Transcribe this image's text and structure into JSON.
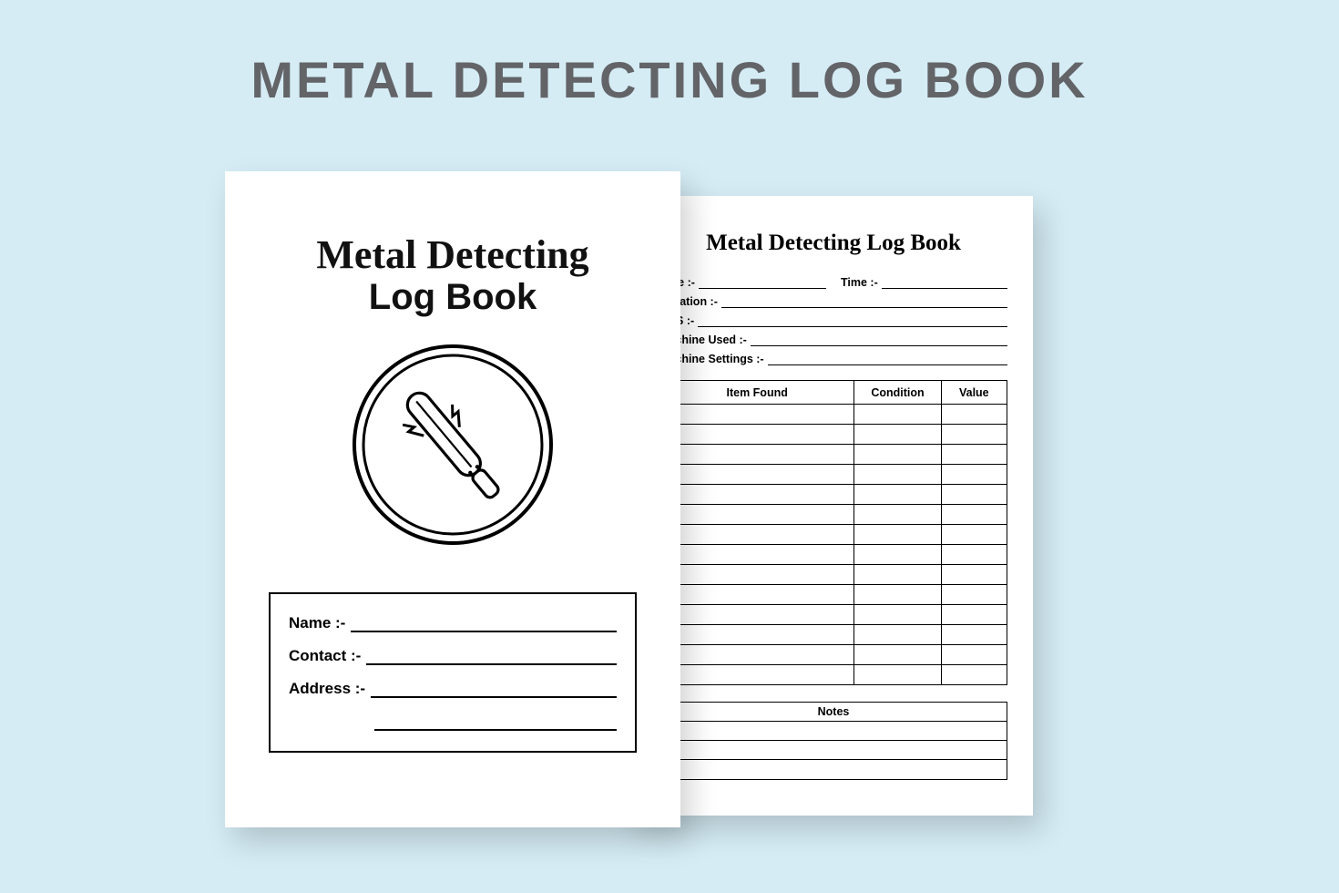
{
  "main_title": "METAL DETECTING LOG BOOK",
  "colors": {
    "background": "#d5ecf5",
    "page_bg": "#ffffff",
    "title_text": "#636468",
    "ink": "#000000"
  },
  "cover": {
    "script_title": "Metal Detecting",
    "block_title": "Log Book",
    "icon_name": "metal-detector-icon",
    "info_fields": {
      "name": "Name :-",
      "contact": "Contact :-",
      "address": "Address :-"
    }
  },
  "interior": {
    "title": "Metal Detecting Log Book",
    "meta_labels": {
      "date": "Date :-",
      "time": "Time :-",
      "location": "Location :-",
      "gps": "GPS :-",
      "machine_used": "Machine Used :-",
      "machine_settings": "Machine Settings :-"
    },
    "table": {
      "columns": [
        "Item Found",
        "Condition",
        "Value"
      ],
      "blank_rows": 14
    },
    "notes": {
      "label": "Notes",
      "blank_lines": 3
    }
  }
}
